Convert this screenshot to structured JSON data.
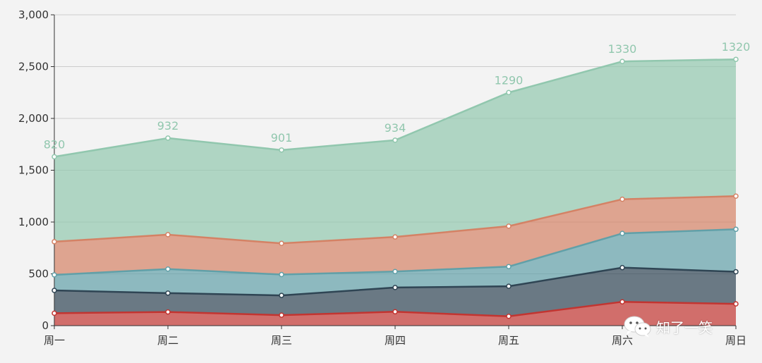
{
  "chart_data": {
    "type": "area",
    "stacked": true,
    "categories": [
      "周一",
      "周二",
      "周三",
      "周四",
      "周五",
      "周六",
      "周日"
    ],
    "ylim": [
      0,
      3000
    ],
    "y_ticks": [
      0,
      500,
      1000,
      1500,
      2000,
      2500,
      3000
    ],
    "y_tick_labels": [
      "0",
      "500",
      "1,000",
      "1,500",
      "2,000",
      "2,500",
      "3,000"
    ],
    "grid": true,
    "series": [
      {
        "color": "#c23531",
        "values": [
          120,
          132,
          101,
          134,
          90,
          230,
          210
        ]
      },
      {
        "color": "#2f4554",
        "values": [
          220,
          182,
          191,
          234,
          290,
          330,
          310
        ]
      },
      {
        "color": "#61a0a8",
        "values": [
          150,
          232,
          201,
          154,
          190,
          330,
          410
        ]
      },
      {
        "color": "#d48265",
        "values": [
          320,
          332,
          301,
          334,
          390,
          330,
          320
        ]
      },
      {
        "color": "#91c7ae",
        "values": [
          820,
          932,
          901,
          934,
          1290,
          1330,
          1320
        ],
        "show_labels": true
      }
    ]
  },
  "watermark": {
    "text": "知了一笑",
    "icon": "wechat-icon"
  }
}
